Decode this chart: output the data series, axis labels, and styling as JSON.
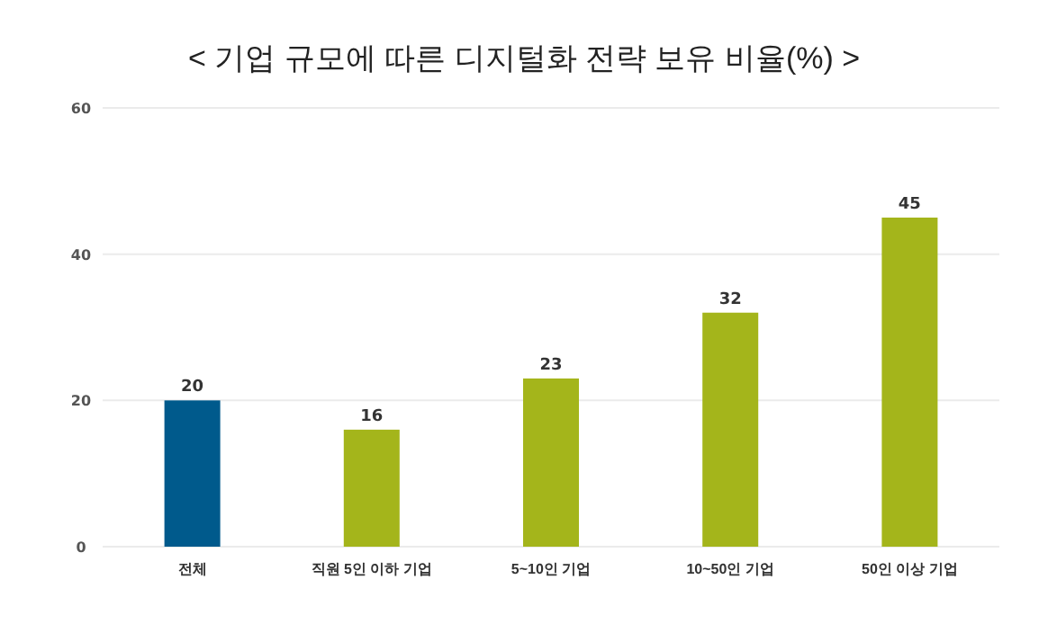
{
  "chart_data": {
    "type": "bar",
    "title": "< 기업 규모에 따른 디지털화 전략 보유 비율(%) >",
    "categories": [
      "전체",
      "직원 5인 이하 기업",
      "5~10인 기업",
      "10~50인 기업",
      "50인 이상 기업"
    ],
    "values": [
      20,
      16,
      23,
      32,
      45
    ],
    "colors": [
      "#005a8c",
      "#a4b51b",
      "#a4b51b",
      "#a4b51b",
      "#a4b51b"
    ],
    "ylim": [
      0,
      60
    ],
    "yticks": [
      0,
      20,
      40,
      60
    ],
    "grid": "y",
    "data_labels": true
  }
}
